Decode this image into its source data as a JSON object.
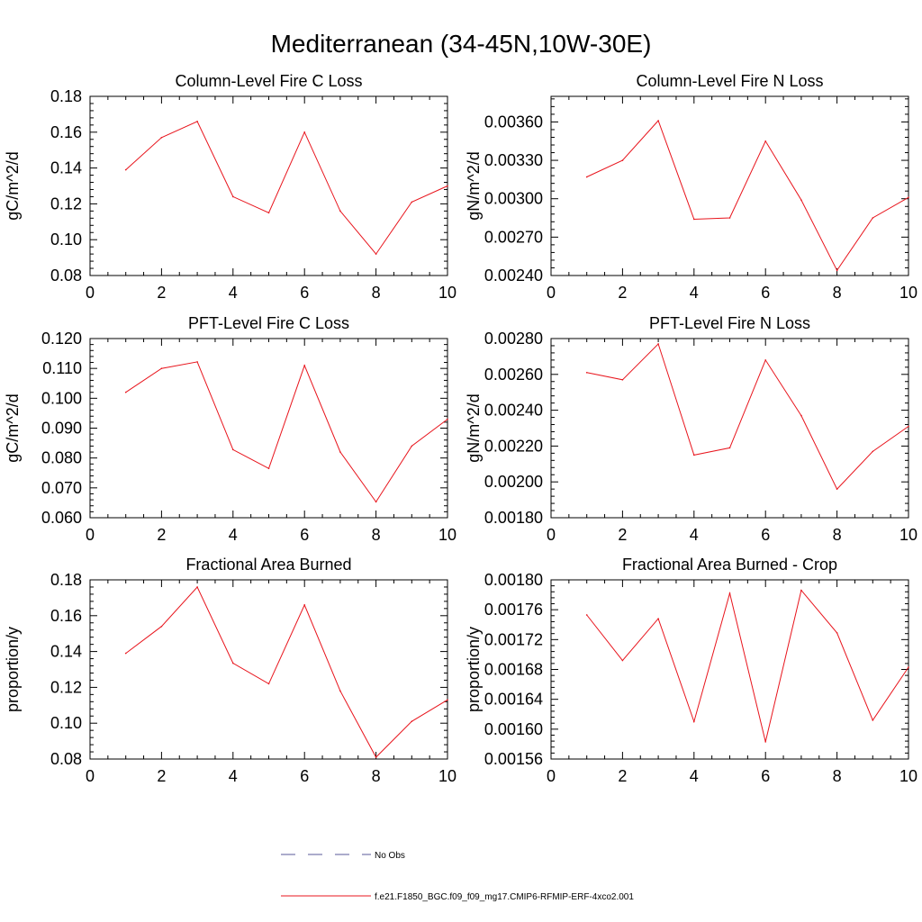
{
  "figure_title": "Mediterranean (34-45N,10W-30E)",
  "legend": [
    {
      "label": "No Obs",
      "color": "#5a5a9a",
      "style": "dashed"
    },
    {
      "label": "f.e21.F1850_BGC.f09_f09_mg17.CMIP6-RFMIP-ERF-4xco2.001",
      "color": "#e8141c",
      "style": "solid"
    }
  ],
  "chart_data": [
    {
      "type": "line",
      "title": "Column-Level Fire C Loss",
      "ylabel": "gC/m^2/d",
      "xlabel": "",
      "xlim": [
        0,
        10
      ],
      "ylim": [
        0.08,
        0.18
      ],
      "xticks": [
        0,
        2,
        4,
        6,
        8,
        10
      ],
      "xtick_labels": [
        "0",
        "2",
        "4",
        "6",
        "8",
        "10"
      ],
      "yticks": [
        0.08,
        0.1,
        0.12,
        0.14,
        0.16,
        0.18
      ],
      "ytick_labels": [
        "0.08",
        "0.10",
        "0.12",
        "0.14",
        "0.16",
        "0.18"
      ],
      "x": [
        1,
        2,
        3,
        4,
        5,
        6,
        7,
        8,
        9,
        10
      ],
      "series": [
        {
          "name": "f.e21.F1850_BGC.f09_f09_mg17.CMIP6-RFMIP-ERF-4xco2.001",
          "color": "#e8141c",
          "values": [
            0.139,
            0.157,
            0.166,
            0.124,
            0.115,
            0.16,
            0.116,
            0.092,
            0.121,
            0.13
          ]
        }
      ]
    },
    {
      "type": "line",
      "title": "Column-Level Fire N Loss",
      "ylabel": "gN/m^2/d",
      "xlabel": "",
      "xlim": [
        0,
        10
      ],
      "ylim": [
        0.0024,
        0.0038
      ],
      "xticks": [
        0,
        2,
        4,
        6,
        8,
        10
      ],
      "xtick_labels": [
        "0",
        "2",
        "4",
        "6",
        "8",
        "10"
      ],
      "yticks": [
        0.0024,
        0.0027,
        0.003,
        0.0033,
        0.0036
      ],
      "ytick_labels": [
        "0.00240",
        "0.00270",
        "0.00300",
        "0.00330",
        "0.00360"
      ],
      "x": [
        1,
        2,
        3,
        4,
        5,
        6,
        7,
        8,
        9,
        10
      ],
      "series": [
        {
          "name": "f.e21.F1850_BGC.f09_f09_mg17.CMIP6-RFMIP-ERF-4xco2.001",
          "color": "#e8141c",
          "values": [
            0.00317,
            0.0033,
            0.00361,
            0.00284,
            0.00285,
            0.00345,
            0.00299,
            0.00244,
            0.00285,
            0.00301
          ]
        }
      ]
    },
    {
      "type": "line",
      "title": "PFT-Level Fire C Loss",
      "ylabel": "gC/m^2/d",
      "xlabel": "",
      "xlim": [
        0,
        10
      ],
      "ylim": [
        0.06,
        0.12
      ],
      "xticks": [
        0,
        2,
        4,
        6,
        8,
        10
      ],
      "xtick_labels": [
        "0",
        "2",
        "4",
        "6",
        "8",
        "10"
      ],
      "yticks": [
        0.06,
        0.07,
        0.08,
        0.09,
        0.1,
        0.11,
        0.12
      ],
      "ytick_labels": [
        "0.060",
        "0.070",
        "0.080",
        "0.090",
        "0.100",
        "0.110",
        "0.120"
      ],
      "x": [
        1,
        2,
        3,
        4,
        5,
        6,
        7,
        8,
        9,
        10
      ],
      "series": [
        {
          "name": "f.e21.F1850_BGC.f09_f09_mg17.CMIP6-RFMIP-ERF-4xco2.001",
          "color": "#e8141c",
          "values": [
            0.102,
            0.11,
            0.1122,
            0.0828,
            0.0765,
            0.111,
            0.082,
            0.0653,
            0.084,
            0.093
          ]
        }
      ]
    },
    {
      "type": "line",
      "title": "PFT-Level Fire N Loss",
      "ylabel": "gN/m^2/d",
      "xlabel": "",
      "xlim": [
        0,
        10
      ],
      "ylim": [
        0.0018,
        0.0028
      ],
      "xticks": [
        0,
        2,
        4,
        6,
        8,
        10
      ],
      "xtick_labels": [
        "0",
        "2",
        "4",
        "6",
        "8",
        "10"
      ],
      "yticks": [
        0.0018,
        0.002,
        0.0022,
        0.0024,
        0.0026,
        0.0028
      ],
      "ytick_labels": [
        "0.00180",
        "0.00200",
        "0.00220",
        "0.00240",
        "0.00260",
        "0.00280"
      ],
      "x": [
        1,
        2,
        3,
        4,
        5,
        6,
        7,
        8,
        9,
        10
      ],
      "series": [
        {
          "name": "f.e21.F1850_BGC.f09_f09_mg17.CMIP6-RFMIP-ERF-4xco2.001",
          "color": "#e8141c",
          "values": [
            0.00261,
            0.00257,
            0.00277,
            0.00215,
            0.00219,
            0.00268,
            0.00237,
            0.00196,
            0.00217,
            0.00231
          ]
        }
      ]
    },
    {
      "type": "line",
      "title": "Fractional Area Burned",
      "ylabel": "proportion/y",
      "xlabel": "",
      "xlim": [
        0,
        10
      ],
      "ylim": [
        0.08,
        0.18
      ],
      "xticks": [
        0,
        2,
        4,
        6,
        8,
        10
      ],
      "xtick_labels": [
        "0",
        "2",
        "4",
        "6",
        "8",
        "10"
      ],
      "yticks": [
        0.08,
        0.1,
        0.12,
        0.14,
        0.16,
        0.18
      ],
      "ytick_labels": [
        "0.08",
        "0.10",
        "0.12",
        "0.14",
        "0.16",
        "0.18"
      ],
      "x": [
        1,
        2,
        3,
        4,
        5,
        6,
        7,
        8,
        9,
        10
      ],
      "series": [
        {
          "name": "f.e21.F1850_BGC.f09_f09_mg17.CMIP6-RFMIP-ERF-4xco2.001",
          "color": "#e8141c",
          "values": [
            0.139,
            0.154,
            0.176,
            0.1335,
            0.122,
            0.166,
            0.118,
            0.081,
            0.101,
            0.113
          ]
        }
      ]
    },
    {
      "type": "line",
      "title": "Fractional Area Burned - Crop",
      "ylabel": "proportion/y",
      "xlabel": "",
      "xlim": [
        0,
        10
      ],
      "ylim": [
        0.00156,
        0.0018
      ],
      "xticks": [
        0,
        2,
        4,
        6,
        8,
        10
      ],
      "xtick_labels": [
        "0",
        "2",
        "4",
        "6",
        "8",
        "10"
      ],
      "yticks": [
        0.00156,
        0.0016,
        0.00164,
        0.00168,
        0.00172,
        0.00176,
        0.0018
      ],
      "ytick_labels": [
        "0.00156",
        "0.00160",
        "0.00164",
        "0.00168",
        "0.00172",
        "0.00176",
        "0.00180"
      ],
      "x": [
        1,
        2,
        3,
        4,
        5,
        6,
        7,
        8,
        9,
        10
      ],
      "series": [
        {
          "name": "f.e21.F1850_BGC.f09_f09_mg17.CMIP6-RFMIP-ERF-4xco2.001",
          "color": "#e8141c",
          "values": [
            0.001753,
            0.001692,
            0.001748,
            0.00161,
            0.001782,
            0.001583,
            0.001786,
            0.001729,
            0.001612,
            0.001683
          ]
        }
      ]
    }
  ]
}
